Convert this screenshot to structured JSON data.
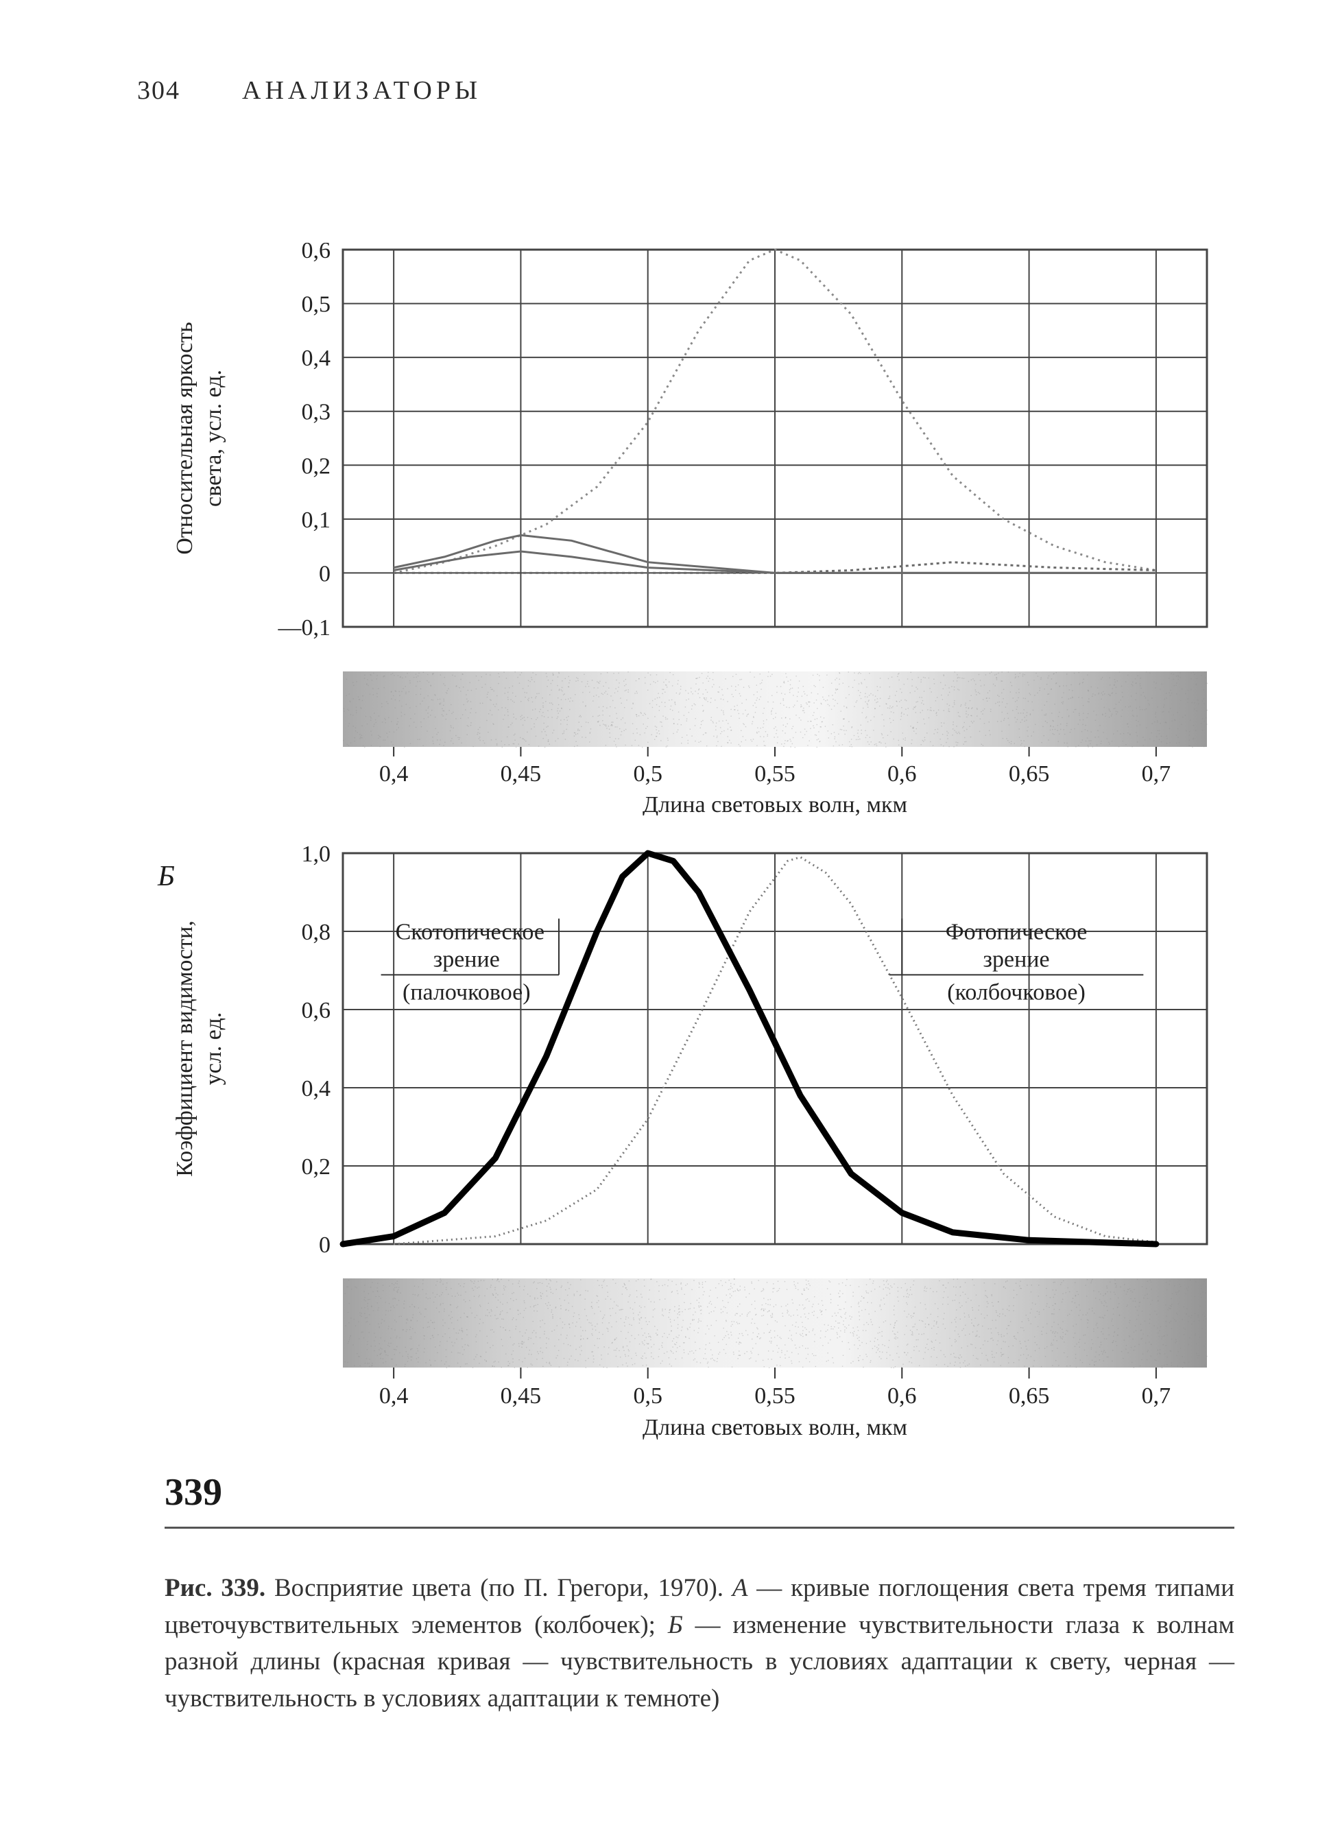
{
  "header": {
    "page_number": "304",
    "section_title": "АНАЛИЗАТОРЫ"
  },
  "figure": {
    "number_label": "339",
    "caption_lead": "Рис. 339.",
    "caption_body": " Восприятие цвета (по П. Грегори, 1970). ",
    "caption_A_label": "А",
    "caption_A_text": " — кривые поглощения света тремя типами цветочувствительных элементов (колбочек); ",
    "caption_B_label": "Б",
    "caption_B_text": " — изменение чувствительности глаза к волнам разной длины (красная кривая — чувствительность в условиях адаптации к свету, черная — чувствительность в условиях адаптации к темноте)",
    "panel_A_label": "",
    "panel_B_label": "Б"
  },
  "chartA": {
    "type": "line",
    "y_label": "Относительная яркость\nсвета, усл. ед.",
    "x_label": "Длина световых волн, мкм",
    "xlim": [
      0.38,
      0.72
    ],
    "ylim": [
      -0.1,
      0.6
    ],
    "xticks": [
      0.4,
      0.45,
      0.5,
      0.55,
      0.6,
      0.65,
      0.7
    ],
    "xtick_labels": [
      "0,4",
      "0,45",
      "0,5",
      "0,55",
      "0,6",
      "0,65",
      "0,7"
    ],
    "yticks": [
      -0.1,
      0,
      0.1,
      0.2,
      0.3,
      0.4,
      0.5,
      0.6
    ],
    "ytick_labels": [
      "—0,1",
      "0",
      "0,1",
      "0,2",
      "0,3",
      "0,4",
      "0,5",
      "0,6"
    ],
    "grid_color": "#444",
    "line_color": "#6a6a6a",
    "line_dotted_color": "#8a8a8a",
    "line_width": 3,
    "series1": [
      [
        0.4,
        0.0
      ],
      [
        0.42,
        0.02
      ],
      [
        0.44,
        0.05
      ],
      [
        0.46,
        0.09
      ],
      [
        0.48,
        0.16
      ],
      [
        0.5,
        0.28
      ],
      [
        0.52,
        0.45
      ],
      [
        0.54,
        0.58
      ],
      [
        0.55,
        0.6
      ],
      [
        0.56,
        0.58
      ],
      [
        0.58,
        0.48
      ],
      [
        0.6,
        0.32
      ],
      [
        0.62,
        0.18
      ],
      [
        0.64,
        0.1
      ],
      [
        0.66,
        0.05
      ],
      [
        0.68,
        0.02
      ],
      [
        0.7,
        0.005
      ]
    ],
    "series2": [
      [
        0.4,
        0.01
      ],
      [
        0.42,
        0.03
      ],
      [
        0.44,
        0.06
      ],
      [
        0.45,
        0.07
      ],
      [
        0.47,
        0.06
      ],
      [
        0.5,
        0.02
      ],
      [
        0.55,
        0.0
      ],
      [
        0.6,
        0.0
      ],
      [
        0.7,
        0.0
      ]
    ],
    "series3": [
      [
        0.4,
        0.005
      ],
      [
        0.43,
        0.03
      ],
      [
        0.45,
        0.04
      ],
      [
        0.47,
        0.03
      ],
      [
        0.5,
        0.01
      ],
      [
        0.55,
        0.0
      ],
      [
        0.6,
        0.0
      ],
      [
        0.7,
        0.0
      ]
    ],
    "series4": [
      [
        0.4,
        0.0
      ],
      [
        0.45,
        0.0
      ],
      [
        0.5,
        0.0
      ],
      [
        0.55,
        0.0
      ],
      [
        0.58,
        0.005
      ],
      [
        0.62,
        0.02
      ],
      [
        0.66,
        0.01
      ],
      [
        0.7,
        0.005
      ]
    ],
    "label_fontsize": 34,
    "tick_fontsize": 34
  },
  "chartB": {
    "type": "line",
    "y_label": "Коэффициент видимости,\nусл. ед.",
    "x_label": "Длина световых волн, мкм",
    "xlim": [
      0.38,
      0.72
    ],
    "ylim": [
      0,
      1.0
    ],
    "xticks": [
      0.4,
      0.45,
      0.5,
      0.55,
      0.6,
      0.65,
      0.7
    ],
    "xtick_labels": [
      "0,4",
      "0,45",
      "0,5",
      "0,55",
      "0,6",
      "0,65",
      "0,7"
    ],
    "yticks": [
      0,
      0.2,
      0.4,
      0.6,
      0.8,
      1.0
    ],
    "ytick_labels": [
      "0",
      "0,2",
      "0,4",
      "0,6",
      "0,8",
      "1,0"
    ],
    "grid_color": "#444",
    "scotopic": {
      "color": "#000000",
      "width": 9,
      "label_line1": "Скотопическое",
      "label_line2": "зрение",
      "label_line3": "(палочковое)",
      "data": [
        [
          0.38,
          0.0
        ],
        [
          0.4,
          0.02
        ],
        [
          0.42,
          0.08
        ],
        [
          0.44,
          0.22
        ],
        [
          0.46,
          0.48
        ],
        [
          0.48,
          0.8
        ],
        [
          0.49,
          0.94
        ],
        [
          0.5,
          1.0
        ],
        [
          0.51,
          0.98
        ],
        [
          0.52,
          0.9
        ],
        [
          0.54,
          0.65
        ],
        [
          0.56,
          0.38
        ],
        [
          0.58,
          0.18
        ],
        [
          0.6,
          0.08
        ],
        [
          0.62,
          0.03
        ],
        [
          0.65,
          0.01
        ],
        [
          0.7,
          0.0
        ]
      ]
    },
    "photopic": {
      "color": "#7a7a7a",
      "width": 3,
      "dotted": true,
      "label_line1": "Фотопическое",
      "label_line2": "зрение",
      "label_line3": "(колбочковое)",
      "data": [
        [
          0.4,
          0.0
        ],
        [
          0.44,
          0.02
        ],
        [
          0.46,
          0.06
        ],
        [
          0.48,
          0.14
        ],
        [
          0.5,
          0.32
        ],
        [
          0.52,
          0.58
        ],
        [
          0.54,
          0.85
        ],
        [
          0.555,
          0.98
        ],
        [
          0.56,
          0.99
        ],
        [
          0.57,
          0.95
        ],
        [
          0.58,
          0.87
        ],
        [
          0.6,
          0.63
        ],
        [
          0.62,
          0.38
        ],
        [
          0.64,
          0.18
        ],
        [
          0.66,
          0.07
        ],
        [
          0.68,
          0.02
        ],
        [
          0.7,
          0.005
        ]
      ]
    },
    "label_fontsize": 34,
    "tick_fontsize": 34
  },
  "spectrum_band": {
    "fill": "#b9b9b9",
    "noise": "#8c8c8c"
  },
  "colors": {
    "text": "#1a1a1a",
    "background": "#ffffff"
  }
}
